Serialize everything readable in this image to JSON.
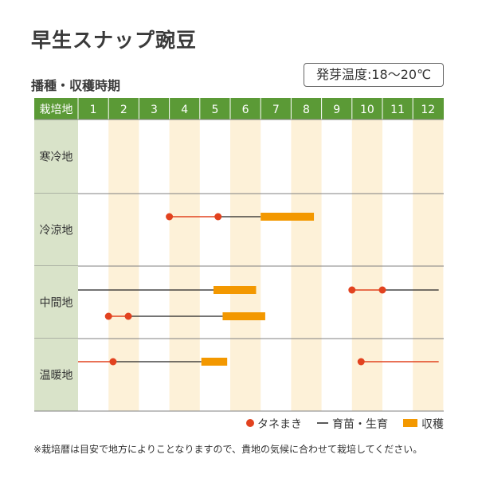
{
  "title": "早生スナップ豌豆",
  "section_title": "播種・収穫時期",
  "germination": "発芽温度:18〜20℃",
  "header_label": "栽培地",
  "months": [
    "1",
    "2",
    "3",
    "4",
    "5",
    "6",
    "7",
    "8",
    "9",
    "10",
    "11",
    "12"
  ],
  "colors": {
    "header_green": "#5b9a36",
    "label_green": "#d9e3c9",
    "stripe": "#fdf1d8",
    "sowing": "#e2421f",
    "harvest": "#f39800",
    "line": "#222222",
    "row_border": "#808080"
  },
  "regions": [
    {
      "name": "寒冷地",
      "tracks": []
    },
    {
      "name": "冷涼地",
      "tracks": [
        {
          "sowing_line": [
            4.0,
            5.6
          ],
          "dots": [
            4.0,
            5.6
          ],
          "growing": [
            5.6,
            7.0
          ],
          "harvest": [
            7.0,
            8.75
          ]
        }
      ]
    },
    {
      "name": "中間地",
      "tracks": [
        {
          "growing": [
            1.0,
            5.45
          ],
          "harvest": [
            5.45,
            6.85
          ],
          "sowing_line": [
            10.0,
            11.0
          ],
          "dots": [
            10.0,
            11.0
          ],
          "growing2": [
            11.0,
            12.85
          ]
        },
        {
          "sowing_line": [
            2.0,
            2.65
          ],
          "dots": [
            2.0,
            2.65
          ],
          "growing": [
            2.65,
            5.75
          ],
          "harvest": [
            5.75,
            7.15
          ]
        }
      ]
    },
    {
      "name": "温暖地",
      "tracks": [
        {
          "sowing_line": [
            1.0,
            2.15
          ],
          "dots": [
            2.15
          ],
          "growing": [
            2.15,
            5.05
          ],
          "harvest": [
            5.05,
            5.9
          ],
          "sowing_line2": [
            10.3,
            12.85
          ],
          "dots2": [
            10.3
          ]
        }
      ]
    }
  ],
  "legend": {
    "sowing": "タネまき",
    "growing": "育苗・生育",
    "harvest": "収穫"
  },
  "footnote": "※栽培暦は目安で地方によりことなりますので、貴地の気候に合わせて栽培してください。"
}
